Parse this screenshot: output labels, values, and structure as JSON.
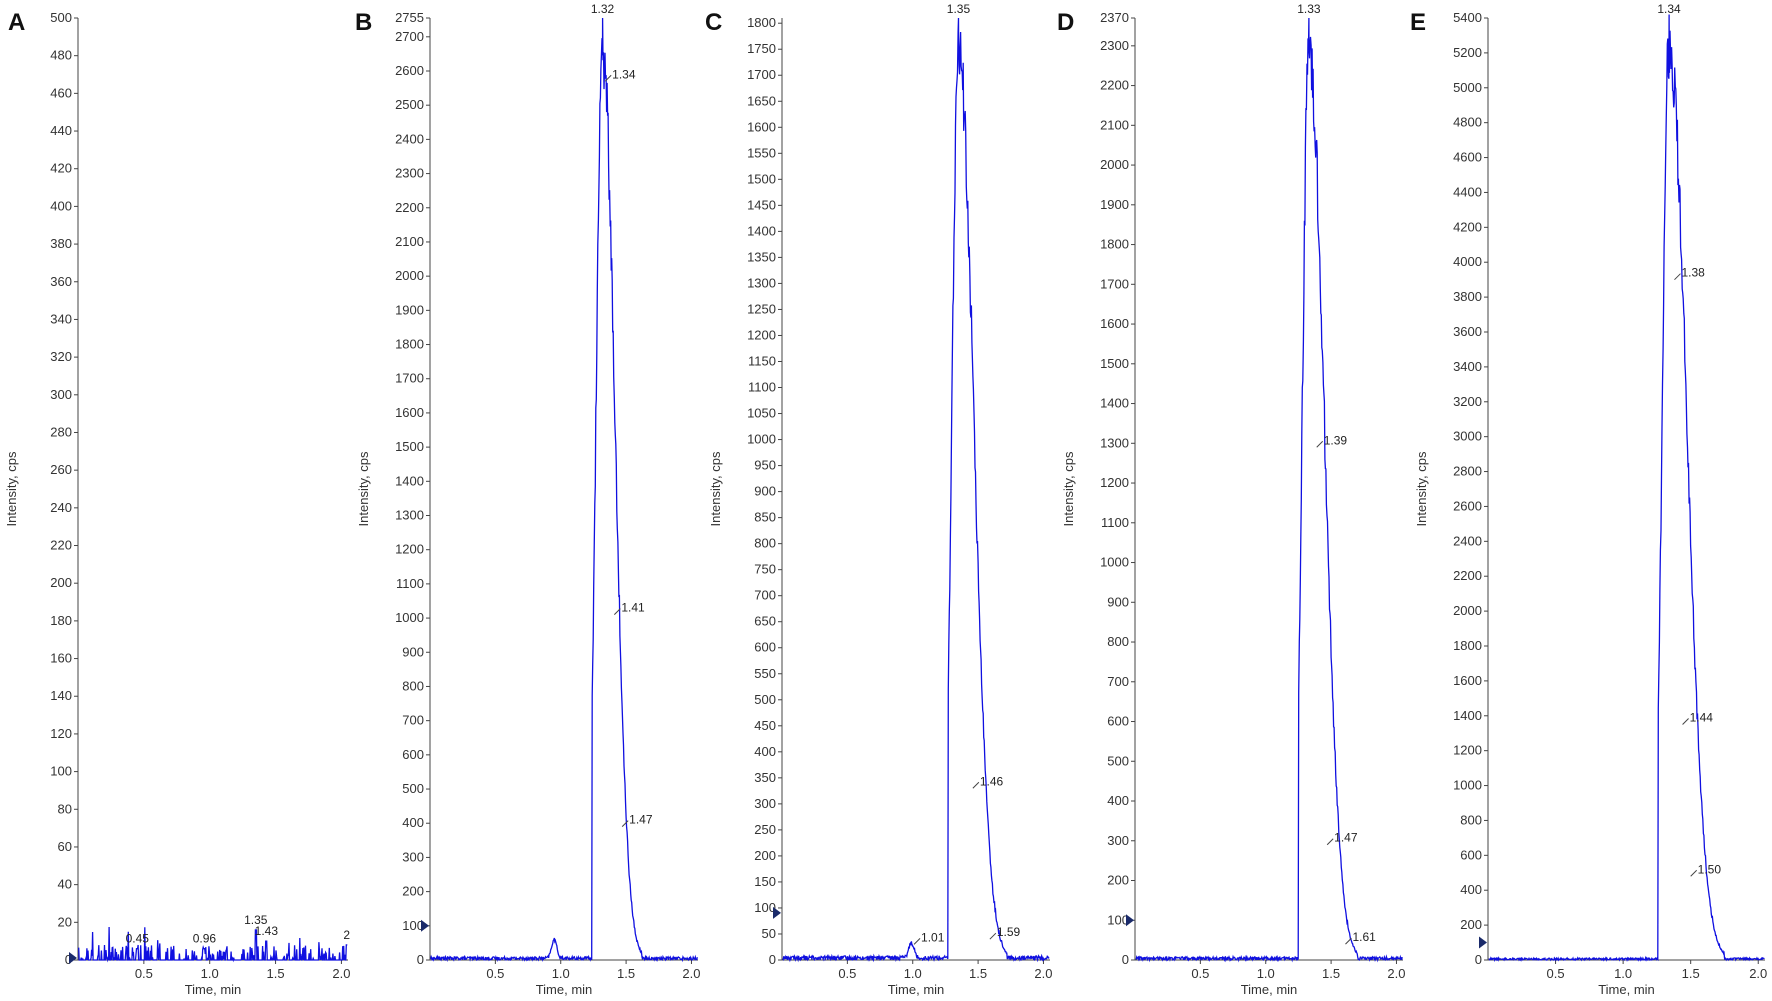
{
  "chart_data": [
    {
      "type": "line",
      "panel": "A",
      "ylabel": "Intensity, cps",
      "xlabel": "Time, min",
      "xlim": [
        0,
        2.05
      ],
      "ylim": [
        0,
        500
      ],
      "yticks": [
        0,
        20,
        40,
        60,
        80,
        100,
        120,
        140,
        160,
        180,
        200,
        220,
        240,
        260,
        280,
        300,
        320,
        340,
        360,
        380,
        400,
        420,
        440,
        460,
        480,
        500
      ],
      "xticks": [
        "0.5",
        "1.0",
        "1.5",
        "2.0"
      ],
      "top_label": "",
      "peak_annotations": [
        {
          "t": 0.45,
          "y": 6,
          "label": "0.45"
        },
        {
          "t": 0.96,
          "y": 6,
          "label": "0.96"
        },
        {
          "t": 1.35,
          "y": 16,
          "label": "1.35"
        },
        {
          "t": 1.43,
          "y": 10,
          "label": "1.43"
        },
        {
          "t": 2.04,
          "y": 8,
          "label": "2"
        }
      ],
      "noise_level": 8,
      "peak": null
    },
    {
      "type": "line",
      "panel": "B",
      "ylabel": "Intensity, cps",
      "xlabel": "Time, min",
      "xlim": [
        0,
        2.05
      ],
      "ylim": [
        0,
        2755
      ],
      "yticks": [
        0,
        100,
        200,
        300,
        400,
        500,
        600,
        700,
        800,
        900,
        1000,
        1100,
        1200,
        1300,
        1400,
        1500,
        1600,
        1700,
        1800,
        1900,
        2000,
        2100,
        2200,
        2300,
        2400,
        2500,
        2600,
        2700,
        2755
      ],
      "xticks": [
        "0.5",
        "1.0",
        "1.5",
        "2.0"
      ],
      "top_label": "1.32",
      "peak_annotations": [
        {
          "t": 1.34,
          "y": 2570,
          "label": "1.34"
        },
        {
          "t": 1.41,
          "y": 1010,
          "label": "1.41"
        },
        {
          "t": 1.47,
          "y": 390,
          "label": "1.47"
        }
      ],
      "noise_level": 12,
      "peak": {
        "apex_t": 1.32,
        "apex_y": 2755,
        "start_t": 1.24,
        "end_t": 1.62
      },
      "bump": {
        "t": 0.95,
        "y": 55
      }
    },
    {
      "type": "line",
      "panel": "C",
      "ylabel": "Intensity, cps",
      "xlabel": "Time, min",
      "xlim": [
        0,
        2.05
      ],
      "ylim": [
        0,
        1810
      ],
      "yticks": [
        0,
        50,
        100,
        150,
        200,
        250,
        300,
        350,
        400,
        450,
        500,
        550,
        600,
        650,
        700,
        750,
        800,
        850,
        900,
        950,
        1000,
        1050,
        1100,
        1150,
        1200,
        1250,
        1300,
        1350,
        1400,
        1450,
        1500,
        1550,
        1600,
        1650,
        1700,
        1750,
        1800
      ],
      "xticks": [
        "0.5",
        "1.0",
        "1.5",
        "2.0"
      ],
      "top_label": "1.35",
      "peak_annotations": [
        {
          "t": 1.01,
          "y": 30,
          "label": "1.01"
        },
        {
          "t": 1.46,
          "y": 330,
          "label": "1.46"
        },
        {
          "t": 1.59,
          "y": 40,
          "label": "1.59"
        }
      ],
      "noise_level": 10,
      "peak": {
        "apex_t": 1.35,
        "apex_y": 1810,
        "start_t": 1.27,
        "end_t": 1.72
      },
      "bump": {
        "t": 0.99,
        "y": 30
      }
    },
    {
      "type": "line",
      "panel": "D",
      "ylabel": "Intensity, cps",
      "xlabel": "Time, min",
      "xlim": [
        0,
        2.05
      ],
      "ylim": [
        0,
        2370
      ],
      "yticks": [
        0,
        100,
        200,
        300,
        400,
        500,
        600,
        700,
        800,
        900,
        1000,
        1100,
        1200,
        1300,
        1400,
        1500,
        1600,
        1700,
        1800,
        1900,
        2000,
        2100,
        2200,
        2300,
        2370
      ],
      "xticks": [
        "0.5",
        "1.0",
        "1.5",
        "2.0"
      ],
      "top_label": "1.33",
      "peak_annotations": [
        {
          "t": 1.39,
          "y": 1290,
          "label": "1.39"
        },
        {
          "t": 1.47,
          "y": 290,
          "label": "1.47"
        },
        {
          "t": 1.61,
          "y": 40,
          "label": "1.61"
        }
      ],
      "noise_level": 10,
      "peak": {
        "apex_t": 1.33,
        "apex_y": 2370,
        "start_t": 1.25,
        "end_t": 1.7
      },
      "bump": null
    },
    {
      "type": "line",
      "panel": "E",
      "ylabel": "Intensity, cps",
      "xlabel": "Time, min",
      "xlim": [
        0,
        2.05
      ],
      "ylim": [
        0,
        5400
      ],
      "yticks": [
        0,
        200,
        400,
        600,
        800,
        1000,
        1200,
        1400,
        1600,
        1800,
        2000,
        2200,
        2400,
        2600,
        2800,
        3000,
        3200,
        3400,
        3600,
        3800,
        4000,
        4200,
        4400,
        4600,
        4800,
        5000,
        5200,
        5400
      ],
      "xticks": [
        "0.5",
        "1.0",
        "1.5",
        "2.0"
      ],
      "top_label": "1.34",
      "peak_annotations": [
        {
          "t": 1.38,
          "y": 3900,
          "label": "1.38"
        },
        {
          "t": 1.44,
          "y": 1350,
          "label": "1.44"
        },
        {
          "t": 1.5,
          "y": 480,
          "label": "1.50"
        }
      ],
      "noise_level": 15,
      "peak": {
        "apex_t": 1.34,
        "apex_y": 5420,
        "start_t": 1.26,
        "end_t": 1.75
      },
      "bump": null
    }
  ],
  "colors": {
    "trace": "#1010e0",
    "axis": "#444444",
    "marker": "#1a2a6a"
  }
}
